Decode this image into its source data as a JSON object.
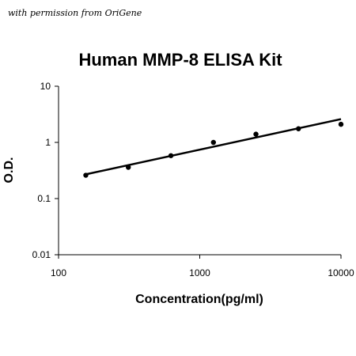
{
  "permission_note": "with permission from OriGene",
  "chart_data": {
    "type": "scatter",
    "title": "Human MMP-8 ELISA Kit",
    "xlabel": "Concentration(pg/ml)",
    "ylabel": "O.D.",
    "x_scale": "log",
    "y_scale": "log",
    "xlim": [
      100,
      10000
    ],
    "ylim": [
      0.01,
      10
    ],
    "x_ticks": [
      {
        "value": 100,
        "label": "100"
      },
      {
        "value": 1000,
        "label": "1000"
      },
      {
        "value": 10000,
        "label": "10000"
      }
    ],
    "y_ticks": [
      {
        "value": 10,
        "label": "10"
      },
      {
        "value": 1,
        "label": "1"
      },
      {
        "value": 0.1,
        "label": "0.1"
      },
      {
        "value": 0.01,
        "label": "0.01"
      }
    ],
    "grid": false,
    "legend": "none",
    "series": [
      {
        "points": [
          {
            "x": 156,
            "y": 0.26
          },
          {
            "x": 312,
            "y": 0.36
          },
          {
            "x": 625,
            "y": 0.58
          },
          {
            "x": 1250,
            "y": 1.0
          },
          {
            "x": 2500,
            "y": 1.4
          },
          {
            "x": 5000,
            "y": 1.75
          },
          {
            "x": 10000,
            "y": 2.1
          }
        ]
      }
    ],
    "trendline": {
      "type": "power",
      "x": [
        156,
        10000
      ],
      "y": [
        0.27,
        2.6
      ]
    }
  }
}
